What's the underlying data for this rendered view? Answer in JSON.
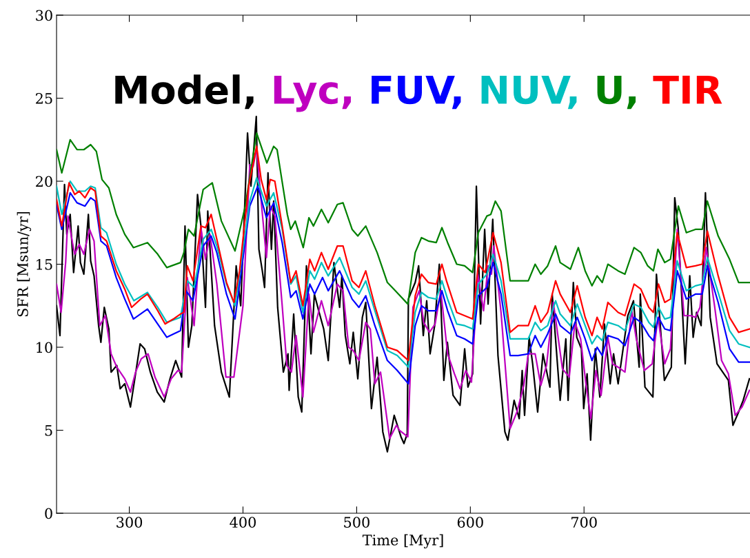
{
  "chart_data": {
    "type": "line",
    "xlabel": "Time [Myr]",
    "ylabel": "SFR [Msun/yr]",
    "xlim": [
      236,
      846
    ],
    "xticks": [
      300,
      400,
      500,
      600,
      700
    ],
    "ylim": [
      0,
      30
    ],
    "yticks": [
      0,
      5,
      10,
      15,
      20,
      25,
      30
    ],
    "grid": false,
    "legend": "top left",
    "marker": "none",
    "line_style": "solid",
    "series": [
      {
        "name": "Model,",
        "color": "#000000",
        "x": [
          236,
          239,
          243,
          245,
          248,
          251,
          255,
          257,
          260,
          264,
          266,
          269,
          273,
          275,
          278,
          282,
          284,
          289,
          292,
          296,
          301,
          305.5,
          309.5,
          313.5,
          318.5,
          324.6,
          330.7,
          335.8,
          340.8,
          346,
          349,
          352,
          355,
          360,
          363,
          367,
          369,
          375,
          381,
          388,
          394,
          398,
          401,
          404,
          407,
          411.7,
          414,
          417,
          419,
          422,
          425,
          427,
          430.5,
          435.5,
          439.6,
          440.6,
          444.6,
          448.6,
          451.7,
          455.8,
          459.8,
          462.8,
          467,
          471,
          475,
          480,
          485,
          487,
          490,
          494,
          497,
          501,
          505,
          508,
          513,
          518,
          523,
          527,
          533,
          539,
          541.6,
          544.5,
          545.5,
          551.5,
          554.5,
          558.6,
          561.6,
          564.6,
          568.6,
          572.7,
          576.7,
          579.8,
          584.8,
          590.9,
          595,
          597.9,
          602,
          605.3,
          609,
          612.6,
          615.6,
          619.7,
          624.3,
          630.4,
          633,
          638.5,
          643,
          645.6,
          647.7,
          651.7,
          654.8,
          659.2,
          663.9,
          670,
          672,
          679,
          684,
          686,
          690.6,
          693.6,
          697.7,
          699.7,
          702.7,
          705.8,
          709.9,
          713.9,
          718,
          723,
          726,
          730,
          738.5,
          743.5,
          748.5,
          749.5,
          753.6,
          760.6,
          763.7,
          770.7,
          776.8,
          779.8,
          782.8,
          789,
          793,
          796,
          799,
          803,
          806.8,
          811,
          817,
          827,
          831,
          836,
          840,
          845.5
        ],
        "values": [
          12.5,
          10.7,
          19.8,
          16.8,
          18.0,
          14.5,
          17.3,
          15.1,
          14.4,
          18.0,
          15.2,
          14.3,
          11.3,
          10.3,
          12.4,
          11.1,
          8.5,
          8.9,
          7.5,
          7.8,
          6.4,
          8.4,
          10.2,
          9.9,
          8.5,
          7.3,
          6.7,
          8.1,
          9.2,
          8.2,
          17.3,
          10.0,
          11.3,
          19.2,
          17.3,
          12.4,
          18.2,
          11.3,
          8.5,
          7.0,
          14.9,
          12.5,
          17.6,
          22.9,
          19.7,
          23.9,
          15.9,
          14.6,
          13.6,
          20.5,
          15.9,
          18.8,
          12.4,
          8.5,
          9.6,
          7.4,
          12.0,
          7.0,
          6.1,
          14.9,
          9.6,
          13.2,
          12.1,
          11.1,
          9.2,
          15.1,
          12.4,
          14.3,
          10.7,
          9.0,
          10.9,
          8.1,
          11.8,
          12.7,
          6.3,
          9.4,
          4.9,
          3.7,
          5.9,
          4.6,
          4.2,
          4.8,
          12.9,
          13.9,
          14.9,
          10.7,
          12.8,
          9.6,
          11.3,
          15.0,
          8.0,
          10.3,
          7.1,
          6.5,
          9.9,
          7.6,
          8.4,
          19.7,
          11.4,
          17.1,
          12.6,
          17.7,
          9.5,
          4.9,
          4.4,
          6.8,
          5.7,
          8.6,
          5.9,
          10.6,
          9.0,
          6.1,
          9.6,
          7.6,
          13.2,
          6.8,
          10.5,
          6.8,
          13.9,
          10.6,
          9.9,
          6.3,
          8.4,
          4.4,
          9.9,
          7.0,
          11.4,
          7.8,
          9.6,
          7.8,
          11.9,
          12.8,
          8.8,
          13.2,
          7.6,
          7.0,
          14.4,
          8.0,
          8.8,
          19.0,
          17.2,
          9.0,
          14.3,
          10.6,
          12.1,
          11.3,
          19.3,
          11.8,
          9.0,
          8.0,
          5.3,
          6.1,
          6.8,
          8.1
        ]
      },
      {
        "name": "Lyc,",
        "color": "#bf00bf",
        "x": [
          236,
          240,
          244,
          246,
          250,
          252,
          256,
          260,
          265,
          269,
          274,
          279,
          284,
          289,
          296,
          301,
          305.5,
          310.5,
          316.5,
          322.6,
          330.7,
          336.8,
          342.8,
          346,
          351,
          357,
          363,
          367,
          371,
          377,
          385,
          392,
          400,
          406,
          409,
          412,
          416,
          420.6,
          424,
          428,
          434.5,
          438.6,
          442.6,
          446.7,
          452.7,
          458,
          462,
          469,
          475,
          483,
          488,
          493,
          497,
          502,
          508,
          512,
          516,
          521,
          529,
          535,
          537.6,
          545,
          549.5,
          555,
          559,
          564,
          569,
          574,
          580,
          586,
          591,
          596,
          601,
          606.6,
          611.6,
          615.6,
          618.6,
          620.6,
          627,
          635,
          641,
          647,
          651,
          657,
          662,
          667,
          673,
          681,
          687,
          692,
          697,
          702,
          706,
          710.5,
          715,
          721,
          725,
          730,
          736,
          742,
          746,
          753,
          760,
          765,
          771,
          776,
          782,
          788,
          794,
          798,
          802,
          807.5,
          815,
          821,
          827,
          833,
          839,
          845.5
        ],
        "values": [
          13.8,
          12.1,
          15.1,
          17.9,
          16.3,
          15.6,
          16.2,
          15.6,
          17.1,
          16.4,
          11.3,
          11.9,
          9.6,
          8.8,
          8.1,
          7.3,
          8.5,
          9.3,
          9.6,
          8.2,
          7.0,
          8.1,
          8.6,
          8.5,
          14.2,
          11.3,
          17.2,
          15.3,
          16.8,
          13.8,
          8.2,
          8.2,
          12.5,
          21.0,
          20.9,
          22.0,
          18.8,
          15.4,
          18.5,
          17.9,
          12.5,
          8.9,
          8.5,
          10.7,
          7.0,
          13.2,
          10.9,
          12.8,
          11.3,
          13.8,
          13.4,
          10.0,
          9.8,
          9.2,
          11.5,
          11.1,
          7.8,
          8.5,
          4.5,
          5.3,
          5.0,
          4.6,
          12.4,
          13.4,
          11.5,
          10.9,
          11.4,
          13.4,
          9.6,
          8.4,
          7.5,
          8.6,
          7.9,
          14.4,
          12.2,
          14.9,
          14.4,
          16.1,
          12.1,
          5.1,
          6.1,
          7.7,
          9.6,
          9.6,
          7.7,
          8.9,
          12.7,
          8.7,
          8.2,
          11.5,
          10.5,
          7.6,
          5.7,
          8.6,
          7.1,
          10.6,
          9.0,
          8.8,
          8.5,
          12.2,
          10.5,
          8.6,
          9.0,
          11.8,
          9.0,
          9.9,
          17.1,
          11.9,
          11.9,
          11.8,
          12.4,
          16.0,
          12.4,
          9.2,
          8.4,
          5.9,
          6.4,
          7.4
        ]
      },
      {
        "name": "FUV,",
        "color": "#0000ff",
        "x": [
          236,
          240.6,
          248,
          254,
          261,
          266,
          270,
          275,
          280,
          288.5,
          296,
          303.6,
          316,
          325,
          333,
          345,
          350,
          356,
          365,
          372,
          377,
          385.5,
          393,
          406,
          413,
          420.6,
          427,
          434.5,
          442,
          446.7,
          452.7,
          458.8,
          463,
          470,
          475,
          485,
          496,
          502,
          508,
          516,
          527,
          535.7,
          545.5,
          551.5,
          557,
          563,
          570,
          575,
          580,
          588,
          595,
          602,
          607,
          614.5,
          620,
          627,
          635,
          642,
          651,
          657,
          662,
          668,
          675,
          679,
          688,
          694,
          701,
          707,
          711.5,
          716,
          721,
          730,
          736,
          744,
          750,
          757,
          761,
          765.5,
          771,
          776,
          782,
          790,
          798,
          804,
          808.5,
          818,
          828,
          836,
          845.5
        ],
        "values": [
          18.6,
          17.1,
          19.3,
          18.7,
          18.5,
          19.0,
          18.8,
          16.4,
          16.1,
          14.2,
          12.9,
          11.7,
          12.3,
          11.4,
          10.6,
          11.0,
          13.4,
          12.8,
          16.1,
          16.7,
          15.7,
          13.2,
          11.7,
          18.5,
          19.7,
          17.8,
          18.7,
          16.3,
          13.0,
          13.4,
          11.7,
          13.8,
          13.2,
          14.2,
          13.4,
          14.6,
          12.9,
          12.4,
          13.1,
          11.3,
          9.2,
          8.6,
          7.8,
          11.3,
          12.5,
          12.2,
          12.2,
          13.4,
          12.2,
          10.7,
          10.5,
          10.2,
          13.1,
          13.6,
          15.1,
          13.2,
          9.5,
          9.5,
          9.6,
          10.7,
          10.0,
          10.8,
          12.0,
          11.3,
          10.8,
          11.8,
          10.5,
          9.2,
          10.0,
          9.5,
          10.7,
          10.5,
          10.1,
          11.8,
          11.5,
          10.7,
          10.4,
          11.8,
          11.1,
          11.0,
          14.6,
          12.9,
          13.2,
          13.2,
          14.9,
          12.7,
          9.9,
          9.1,
          9.1
        ]
      },
      {
        "name": "NUV,",
        "color": "#00bfbf",
        "x": [
          236,
          240.6,
          248,
          254,
          261,
          266,
          270,
          275,
          280,
          288.5,
          296,
          304,
          316,
          325,
          333,
          345,
          351,
          357,
          365,
          372,
          377,
          385.5,
          393,
          406,
          412,
          420.6,
          427,
          434.5,
          442,
          446.7,
          452.7,
          458.8,
          463,
          469,
          475,
          485,
          496,
          502,
          508,
          516,
          527,
          535.7,
          545.5,
          551.5,
          557,
          563,
          570,
          575,
          580,
          588,
          595,
          602,
          607,
          614.5,
          620,
          627,
          635,
          642,
          651,
          657,
          662,
          668,
          675,
          679,
          688,
          694,
          701,
          707,
          711.5,
          716,
          721,
          730,
          736,
          744,
          750,
          757,
          761,
          765.5,
          771,
          776,
          782,
          790,
          798,
          804,
          808.5,
          818,
          828,
          836,
          845.5
        ],
        "values": [
          19.7,
          18.0,
          20.0,
          19.4,
          19.4,
          19.7,
          19.6,
          17.2,
          16.9,
          15.0,
          13.8,
          12.8,
          13.3,
          12.4,
          11.5,
          11.8,
          14.0,
          13.6,
          16.5,
          17.1,
          16.1,
          13.8,
          12.5,
          18.8,
          20.2,
          18.5,
          19.3,
          17.1,
          13.8,
          14.3,
          12.1,
          14.6,
          14.1,
          15.1,
          14.3,
          15.4,
          13.6,
          13.2,
          14.0,
          12.2,
          9.8,
          9.5,
          8.8,
          12.1,
          13.3,
          13.0,
          12.9,
          14.0,
          12.9,
          11.4,
          11.3,
          11.1,
          13.8,
          14.4,
          15.6,
          14.0,
          10.5,
          10.5,
          10.5,
          11.5,
          11.0,
          11.3,
          12.8,
          12.0,
          11.3,
          12.6,
          11.3,
          10.2,
          10.7,
          10.4,
          11.5,
          11.3,
          11.0,
          12.6,
          12.4,
          11.5,
          11.2,
          12.4,
          11.7,
          11.8,
          15.2,
          13.4,
          13.7,
          13.8,
          15.4,
          13.3,
          11.0,
          10.2,
          10.0
        ]
      },
      {
        "name": "U,",
        "color": "#008000",
        "x": [
          236,
          240.6,
          248,
          254,
          260,
          266,
          271,
          276,
          282,
          288.5,
          296,
          303.6,
          316,
          325,
          333,
          345,
          348,
          352,
          357,
          365,
          373,
          381,
          393,
          402,
          412,
          421,
          427,
          430,
          439,
          442,
          446,
          453,
          458,
          462,
          469,
          475,
          483,
          488,
          496,
          501,
          508,
          518,
          527,
          534,
          545,
          551.5,
          557,
          563,
          570,
          575,
          580,
          588,
          595,
          602,
          607,
          614.5,
          618,
          622,
          627,
          635,
          642,
          651,
          657,
          662,
          668,
          675,
          679,
          688,
          695,
          701,
          707,
          711.5,
          716,
          721,
          730,
          736,
          744,
          750,
          756,
          761,
          765,
          771,
          776,
          783,
          790,
          798,
          804,
          808.5,
          818,
          828,
          836,
          845.5
        ],
        "values": [
          21.9,
          20.5,
          22.5,
          21.9,
          21.9,
          22.2,
          21.8,
          20.1,
          19.6,
          18.0,
          16.8,
          16.0,
          16.3,
          15.6,
          14.8,
          15.1,
          15.7,
          17.1,
          16.7,
          19.5,
          19.9,
          17.6,
          15.8,
          18.5,
          22.9,
          21.1,
          22.1,
          21.9,
          18.0,
          17.1,
          17.6,
          16.0,
          17.8,
          17.3,
          18.3,
          17.5,
          18.6,
          18.7,
          17.1,
          16.7,
          17.3,
          15.7,
          13.9,
          13.4,
          12.6,
          15.7,
          16.6,
          16.4,
          16.3,
          17.2,
          16.3,
          15.0,
          14.9,
          14.5,
          16.9,
          17.9,
          18.0,
          18.8,
          18.2,
          14.0,
          14.0,
          14.0,
          15.0,
          14.4,
          14.9,
          16.1,
          15.1,
          14.7,
          16.0,
          14.6,
          13.7,
          14.3,
          13.9,
          15.0,
          14.6,
          14.4,
          16.0,
          15.7,
          14.9,
          14.6,
          15.9,
          15.1,
          15.3,
          18.5,
          16.9,
          17.1,
          17.1,
          18.8,
          16.7,
          15.3,
          13.9,
          13.9
        ]
      },
      {
        "name": "TIR",
        "color": "#ff0000",
        "x": [
          236,
          240.6,
          247,
          252,
          256,
          261,
          266,
          270,
          275,
          280,
          288.5,
          296,
          302,
          310,
          316,
          325,
          331.5,
          338.8,
          345,
          348,
          351,
          356,
          363,
          367,
          372,
          377,
          385.5,
          392,
          397,
          405,
          412,
          416,
          420.6,
          424,
          428,
          434.5,
          442,
          446.7,
          452.7,
          458.8,
          463,
          469,
          475,
          483,
          488,
          496,
          502,
          508,
          516,
          527,
          535.7,
          545.5,
          551.5,
          557,
          563,
          570,
          575,
          579,
          588,
          595,
          602,
          607,
          613,
          620,
          627,
          635,
          642,
          651,
          657,
          662,
          668,
          675,
          679,
          688,
          694,
          701,
          707,
          711.5,
          716,
          721,
          730,
          736,
          744,
          750,
          757,
          761,
          765.5,
          771,
          776,
          782,
          790,
          798,
          804,
          808.5,
          818,
          828,
          836,
          845.5
        ],
        "values": [
          18.9,
          17.3,
          19.9,
          19.2,
          19.4,
          19.0,
          19.6,
          19.4,
          16.7,
          16.4,
          14.6,
          13.5,
          12.4,
          12.9,
          13.2,
          12.2,
          11.4,
          11.7,
          12.0,
          12.1,
          14.9,
          14.0,
          17.3,
          17.2,
          18.0,
          16.5,
          13.9,
          12.7,
          14.6,
          19.7,
          22.1,
          20.1,
          18.9,
          20.1,
          20.0,
          17.3,
          13.9,
          14.6,
          12.5,
          15.3,
          14.6,
          15.7,
          14.7,
          16.1,
          16.1,
          14.0,
          13.6,
          14.6,
          12.5,
          10.0,
          9.8,
          9.2,
          13.1,
          14.4,
          13.9,
          13.8,
          15.0,
          14.0,
          12.1,
          11.9,
          11.7,
          15.0,
          14.5,
          16.9,
          15.1,
          10.9,
          11.3,
          11.3,
          12.5,
          11.5,
          12.1,
          14.0,
          13.2,
          12.1,
          13.7,
          11.8,
          10.7,
          11.8,
          11.1,
          12.7,
          12.1,
          11.9,
          13.8,
          13.5,
          12.4,
          12.1,
          13.8,
          12.7,
          12.9,
          16.9,
          14.8,
          14.9,
          15.0,
          17.0,
          14.3,
          11.8,
          10.9,
          11.1
        ]
      }
    ]
  }
}
